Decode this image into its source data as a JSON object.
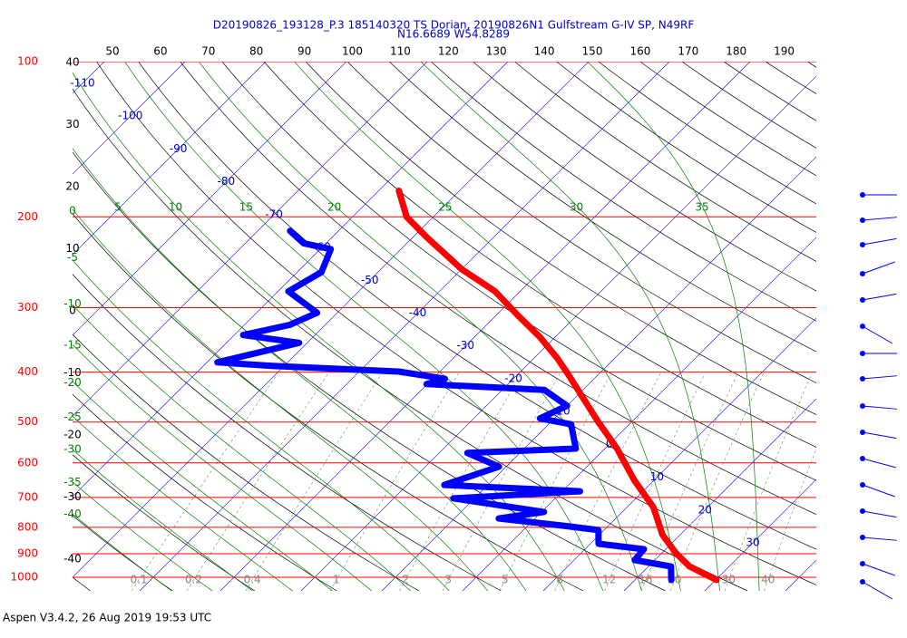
{
  "chart_data": {
    "type": "skewt",
    "title": "D20190826_193128_P.3 185140320 TS Dorian, 20190826N1 Gulfstream G-IV SP, N49RF",
    "subtitle": "N16.6689 W54.8289",
    "footer": "Aspen V3.4.2, 26 Aug 2019  19:53 UTC",
    "ylog": true,
    "ylim": [
      1000,
      100
    ],
    "yticks": [
      100,
      200,
      300,
      400,
      500,
      600,
      700,
      800,
      900,
      1000
    ],
    "isotherms": [
      -110,
      -100,
      -90,
      -80,
      -70,
      -60,
      -50,
      -40,
      -30,
      -20,
      -10,
      0,
      10,
      20,
      30
    ],
    "theta_labels": [
      50,
      60,
      70,
      80,
      90,
      100,
      110,
      120,
      130,
      140,
      150,
      160,
      170,
      180,
      190
    ],
    "left_scale": [
      40,
      30,
      20,
      10,
      0,
      -10,
      -20,
      -30,
      -40
    ],
    "moist_adiabats": [
      -40,
      -35,
      -30,
      -25,
      -20,
      -15,
      -10,
      -5,
      0,
      5,
      10,
      15,
      20,
      25,
      30,
      35
    ],
    "mixing_ratios": [
      0.1,
      0.2,
      0.4,
      1,
      2,
      3,
      5,
      8,
      12,
      16,
      20,
      30,
      40
    ],
    "series": [
      {
        "color": "#ff0000",
        "x": [
          -57.5,
          -53.3,
          -48.3,
          -39.9,
          -33.1,
          -27.4,
          -21.9,
          -17.1,
          -14.0,
          -9.8,
          -4.2,
          1.5,
          7.6,
          13.3,
          17.8,
          21.7,
          25.1,
          30.1
        ],
        "y": [
          178,
          200,
          219,
          253,
          279,
          310,
          342,
          376,
          402,
          441,
          499,
          563,
          649,
          732,
          827,
          897,
          953,
          1012
        ]
      },
      {
        "color": "#0000ff",
        "x": [
          -66.0,
          -62.8,
          -58.7,
          -57.0,
          -58.7,
          -52.5,
          -54.4,
          -58.9,
          -51.0,
          -58.7,
          -51.5,
          -35.1,
          -28.5,
          -30.1,
          -14.8,
          -10.0,
          -11.8,
          -7.2,
          -3.6,
          -16.5,
          -10.9,
          -15.4,
          2.2,
          -12.6,
          0.3,
          -4.5,
          4.3,
          9.3,
          11.0,
          17.3,
          17.5,
          22.8,
          24.5
        ],
        "y": [
          213,
          225,
          231,
          256,
          279,
          307,
          324,
          339,
          351,
          383,
          389,
          399,
          412,
          422,
          433,
          465,
          492,
          505,
          563,
          574,
          610,
          662,
          681,
          703,
          747,
          769,
          794,
          810,
          861,
          882,
          926,
          953,
          1012
        ]
      }
    ]
  }
}
